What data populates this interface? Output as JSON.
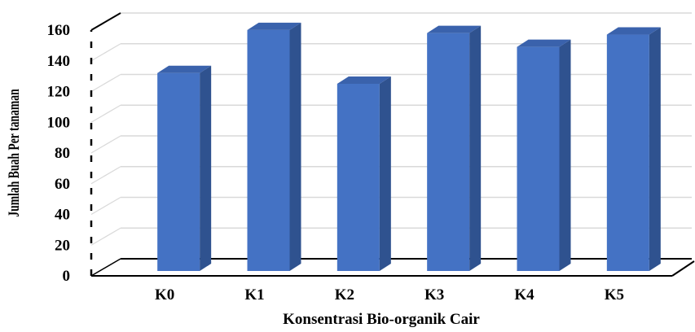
{
  "chart_data": {
    "type": "bar",
    "style": "3d-column",
    "title": "",
    "xlabel": "Konsentrasi Bio-organik Cair",
    "ylabel": "Jumlah Buah Per tanaman",
    "categories": [
      "K0",
      "K1",
      "K2",
      "K3",
      "K4",
      "K5"
    ],
    "series": [
      {
        "values": [
          122,
          150,
          115,
          148,
          139,
          147
        ],
        "color": "#4472C4"
      }
    ],
    "ylim": [
      0,
      160
    ],
    "yticks": [
      0,
      20,
      40,
      60,
      80,
      100,
      120,
      140,
      160
    ],
    "grid": true,
    "legend": "none",
    "colors": {
      "bar_front": "#4472C4",
      "bar_side": "#2F528F",
      "bar_top": "#3A62AC",
      "gridline": "#D9D9D9",
      "axis": "#000000"
    }
  }
}
